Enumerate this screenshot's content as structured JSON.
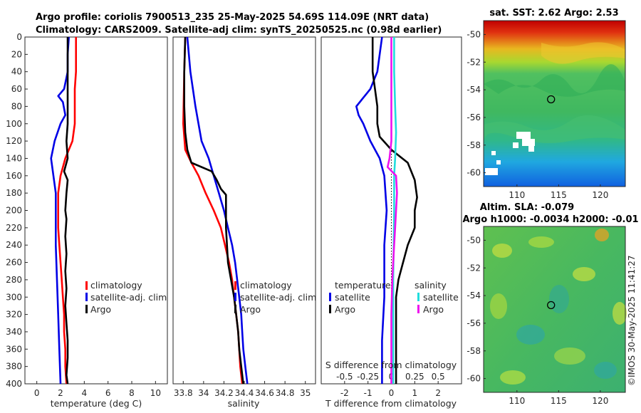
{
  "title": {
    "line1": "Argo profile: coriolis 7900513_235 25-May-2025 54.69S 114.09E (NRT data)",
    "line2": "Climatology: CARS2009. Satellite-adj clim: synTS_20250525.nc (0.98d earlier)"
  },
  "watermark": "©IMOS 30-May-2025 11:41:27",
  "colors": {
    "climatology": "#ff0000",
    "satellite": "#0000e6",
    "argo": "#000000",
    "sat_salinity": "#22dddd",
    "argo_salinity": "#ee11ee"
  },
  "chart_data": [
    {
      "id": "temperature",
      "type": "line",
      "xlabel": "temperature (deg C)",
      "xlim": [
        -1,
        11
      ],
      "xticks": [
        0,
        2,
        4,
        6,
        8,
        10
      ],
      "ylim": [
        400,
        0
      ],
      "yticks": [
        0,
        20,
        40,
        60,
        80,
        100,
        120,
        140,
        160,
        180,
        200,
        220,
        240,
        260,
        280,
        300,
        320,
        340,
        360,
        380,
        400
      ],
      "legend": [
        "climatology",
        "satellite-adj. clim",
        "Argo"
      ],
      "series": [
        {
          "name": "climatology",
          "color": "#ff0000",
          "points": [
            [
              3.3,
              0
            ],
            [
              3.3,
              20
            ],
            [
              3.3,
              40
            ],
            [
              3.2,
              60
            ],
            [
              3.2,
              80
            ],
            [
              3.2,
              100
            ],
            [
              3.0,
              120
            ],
            [
              2.4,
              140
            ],
            [
              2.0,
              160
            ],
            [
              1.8,
              180
            ],
            [
              1.8,
              200
            ],
            [
              1.8,
              220
            ],
            [
              1.9,
              240
            ],
            [
              2.0,
              260
            ],
            [
              2.1,
              280
            ],
            [
              2.2,
              300
            ],
            [
              2.3,
              320
            ],
            [
              2.3,
              340
            ],
            [
              2.4,
              360
            ],
            [
              2.4,
              380
            ],
            [
              2.5,
              400
            ]
          ]
        },
        {
          "name": "satellite-adj. clim",
          "color": "#0000e6",
          "points": [
            [
              2.7,
              0
            ],
            [
              2.6,
              20
            ],
            [
              2.6,
              40
            ],
            [
              2.3,
              60
            ],
            [
              1.8,
              68
            ],
            [
              2.2,
              75
            ],
            [
              2.4,
              90
            ],
            [
              2.0,
              100
            ],
            [
              1.5,
              120
            ],
            [
              1.2,
              140
            ],
            [
              1.4,
              160
            ],
            [
              1.6,
              180
            ],
            [
              1.6,
              200
            ],
            [
              1.6,
              240
            ],
            [
              1.7,
              280
            ],
            [
              1.8,
              320
            ],
            [
              1.9,
              360
            ],
            [
              2.0,
              400
            ]
          ]
        },
        {
          "name": "Argo",
          "color": "#000000",
          "points": [
            [
              2.6,
              0
            ],
            [
              2.6,
              20
            ],
            [
              2.6,
              40
            ],
            [
              2.6,
              60
            ],
            [
              2.6,
              80
            ],
            [
              2.6,
              100
            ],
            [
              2.5,
              120
            ],
            [
              2.6,
              140
            ],
            [
              2.3,
              155
            ],
            [
              2.6,
              165
            ],
            [
              2.5,
              180
            ],
            [
              2.4,
              200
            ],
            [
              2.5,
              210
            ],
            [
              2.4,
              230
            ],
            [
              2.5,
              250
            ],
            [
              2.4,
              270
            ],
            [
              2.5,
              290
            ],
            [
              2.4,
              310
            ],
            [
              2.5,
              330
            ],
            [
              2.6,
              350
            ],
            [
              2.6,
              370
            ],
            [
              2.5,
              390
            ],
            [
              2.6,
              400
            ]
          ]
        }
      ]
    },
    {
      "id": "salinity",
      "type": "line",
      "xlabel": "salinity",
      "xlim": [
        33.7,
        35.1
      ],
      "xticks": [
        33.8,
        34,
        34.2,
        34.4,
        34.6,
        34.8,
        35
      ],
      "xtick_labels": [
        "33.8",
        "34",
        "34.2",
        "34.4",
        "34.6",
        "34.8",
        "35"
      ],
      "ylim": [
        400,
        0
      ],
      "legend": [
        "climatology",
        "satellite-adj. clim",
        "Argo"
      ],
      "series": [
        {
          "name": "climatology",
          "color": "#ff0000",
          "points": [
            [
              33.82,
              0
            ],
            [
              33.81,
              40
            ],
            [
              33.8,
              100
            ],
            [
              33.82,
              130
            ],
            [
              33.88,
              145
            ],
            [
              33.95,
              160
            ],
            [
              34.02,
              180
            ],
            [
              34.1,
              200
            ],
            [
              34.17,
              220
            ],
            [
              34.21,
              240
            ],
            [
              34.25,
              260
            ],
            [
              34.28,
              280
            ],
            [
              34.3,
              300
            ],
            [
              34.32,
              320
            ],
            [
              34.34,
              340
            ],
            [
              34.35,
              360
            ],
            [
              34.36,
              380
            ],
            [
              34.38,
              400
            ]
          ]
        },
        {
          "name": "satellite-adj. clim",
          "color": "#0000e6",
          "points": [
            [
              33.84,
              0
            ],
            [
              33.87,
              40
            ],
            [
              33.92,
              80
            ],
            [
              33.98,
              120
            ],
            [
              34.05,
              140
            ],
            [
              34.1,
              160
            ],
            [
              34.15,
              180
            ],
            [
              34.2,
              200
            ],
            [
              34.24,
              220
            ],
            [
              34.28,
              240
            ],
            [
              34.31,
              260
            ],
            [
              34.33,
              280
            ],
            [
              34.35,
              300
            ],
            [
              34.37,
              320
            ],
            [
              34.38,
              340
            ],
            [
              34.39,
              360
            ],
            [
              34.41,
              380
            ],
            [
              34.43,
              400
            ]
          ]
        },
        {
          "name": "Argo",
          "color": "#000000",
          "points": [
            [
              33.82,
              0
            ],
            [
              33.81,
              40
            ],
            [
              33.81,
              80
            ],
            [
              33.82,
              110
            ],
            [
              33.84,
              130
            ],
            [
              33.88,
              145
            ],
            [
              34.08,
              155
            ],
            [
              34.13,
              165
            ],
            [
              34.17,
              175
            ],
            [
              34.22,
              182
            ],
            [
              34.22,
              220
            ],
            [
              34.24,
              260
            ],
            [
              34.27,
              280
            ],
            [
              34.3,
              300
            ],
            [
              34.32,
              320
            ],
            [
              34.34,
              340
            ],
            [
              34.35,
              360
            ],
            [
              34.37,
              380
            ],
            [
              34.39,
              400
            ]
          ]
        }
      ]
    },
    {
      "id": "differences",
      "type": "line",
      "xlabel": "T difference from climatology",
      "top_label": "S difference from climatology",
      "xlim": [
        -3,
        3
      ],
      "xticks": [
        -2,
        -1,
        0,
        1,
        2
      ],
      "xtick_labels": [
        "-2",
        "-1",
        "0",
        "1",
        "2"
      ],
      "top_xlim": [
        -0.75,
        0.75
      ],
      "top_xticks": [
        -0.5,
        -0.25,
        0,
        0.25,
        0.5
      ],
      "top_xtick_labels": [
        "-0.5",
        "-0.25",
        "0",
        "0.25",
        "0.5"
      ],
      "ylim": [
        400,
        0
      ],
      "legend": {
        "temperature_header": "temperature",
        "salinity_header": "salinity",
        "temperature": [
          "satellite",
          "Argo"
        ],
        "salinity": [
          "satellite",
          "Argo"
        ]
      },
      "series": [
        {
          "name": "T satellite",
          "axis": "T",
          "color": "#0000e6",
          "points": [
            [
              -0.4,
              0
            ],
            [
              -0.5,
              20
            ],
            [
              -0.6,
              40
            ],
            [
              -0.9,
              60
            ],
            [
              -1.5,
              80
            ],
            [
              -1.4,
              90
            ],
            [
              -1.2,
              100
            ],
            [
              -0.9,
              120
            ],
            [
              -0.5,
              140
            ],
            [
              -0.3,
              160
            ],
            [
              -0.2,
              200
            ],
            [
              -0.3,
              240
            ],
            [
              -0.3,
              300
            ],
            [
              -0.4,
              350
            ],
            [
              -0.4,
              400
            ]
          ]
        },
        {
          "name": "T Argo",
          "axis": "T",
          "color": "#000000",
          "points": [
            [
              -0.8,
              0
            ],
            [
              -0.8,
              20
            ],
            [
              -0.8,
              40
            ],
            [
              -0.7,
              60
            ],
            [
              -0.6,
              80
            ],
            [
              -0.6,
              100
            ],
            [
              -0.5,
              115
            ],
            [
              0.0,
              130
            ],
            [
              0.7,
              145
            ],
            [
              1.0,
              165
            ],
            [
              1.1,
              185
            ],
            [
              1.0,
              200
            ],
            [
              1.0,
              220
            ],
            [
              0.7,
              240
            ],
            [
              0.5,
              260
            ],
            [
              0.3,
              280
            ],
            [
              0.2,
              300
            ],
            [
              0.2,
              340
            ],
            [
              0.2,
              380
            ],
            [
              0.2,
              400
            ]
          ]
        },
        {
          "name": "S satellite",
          "axis": "S",
          "color": "#22dddd",
          "points": [
            [
              0.03,
              0
            ],
            [
              0.03,
              40
            ],
            [
              0.04,
              80
            ],
            [
              0.05,
              110
            ],
            [
              0.04,
              140
            ],
            [
              0.03,
              160
            ],
            [
              0.03,
              200
            ],
            [
              0.02,
              280
            ],
            [
              0.02,
              400
            ]
          ]
        },
        {
          "name": "S Argo",
          "axis": "S",
          "color": "#ee11ee",
          "points": [
            [
              0.0,
              0
            ],
            [
              0.0,
              60
            ],
            [
              0.0,
              120
            ],
            [
              -0.02,
              140
            ],
            [
              -0.04,
              150
            ],
            [
              0.05,
              160
            ],
            [
              0.06,
              180
            ],
            [
              0.05,
              200
            ],
            [
              0.04,
              220
            ],
            [
              0.03,
              240
            ],
            [
              0.01,
              280
            ],
            [
              0.0,
              320
            ],
            [
              0.0,
              400
            ]
          ]
        }
      ]
    },
    {
      "id": "sst_map",
      "type": "heatmap",
      "title": "sat. SST: 2.62  Argo: 2.53",
      "lon_range": [
        106,
        123
      ],
      "lat_range": [
        -61,
        -49
      ],
      "xticks": [
        110,
        115,
        120
      ],
      "yticks": [
        -50,
        -52,
        -54,
        -56,
        -58,
        -60
      ],
      "float_position": [
        114.09,
        -54.69
      ]
    },
    {
      "id": "sla_map",
      "type": "heatmap",
      "title_line1": "Altim. SLA: -0.079",
      "title_line2": "Argo h1000: -0.0034 h2000: -0.01",
      "lon_range": [
        106,
        123
      ],
      "lat_range": [
        -61,
        -49
      ],
      "xticks": [
        110,
        115,
        120
      ],
      "yticks": [
        -50,
        -52,
        -54,
        -56,
        -58,
        -60
      ],
      "float_position": [
        114.09,
        -54.69
      ]
    }
  ]
}
